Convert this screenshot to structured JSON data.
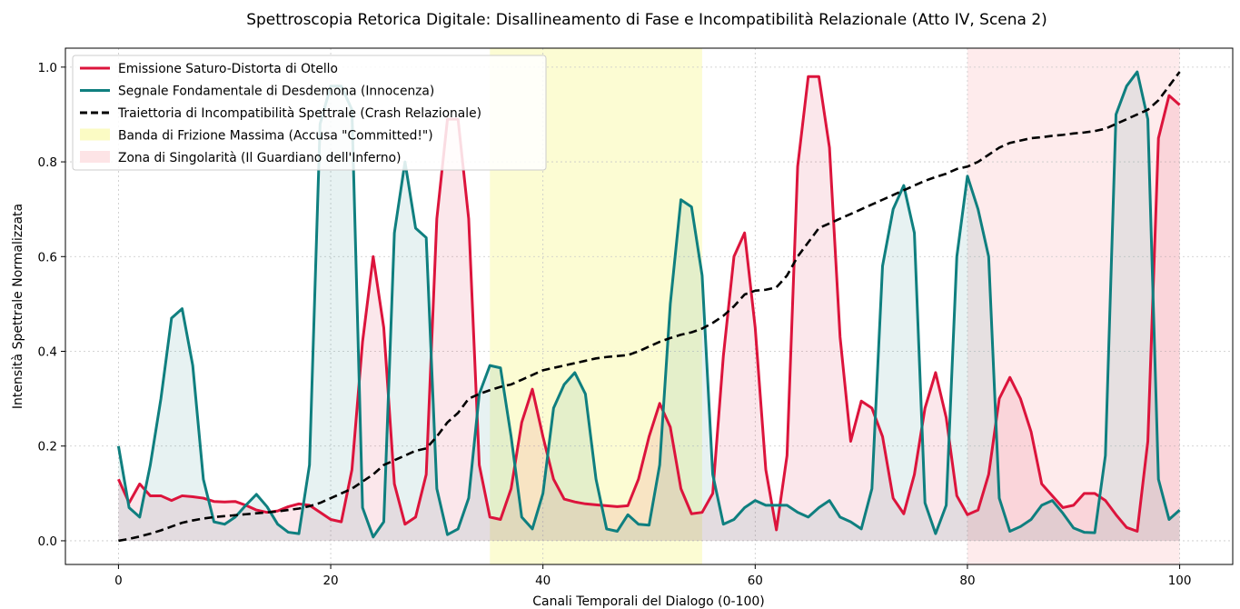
{
  "chart_data": {
    "type": "line",
    "title": "Spettroscopia Retorica Digitale: Disallineamento di Fase e Incompatibilità Relazionale (Atto IV, Scena 2)",
    "xlabel": "Canali Temporali del Dialogo (0-100)",
    "ylabel": "Intensità Spettrale Normalizzata",
    "xlim": [
      -5,
      105
    ],
    "ylim": [
      -0.05,
      1.04
    ],
    "xticks": [
      0,
      20,
      40,
      60,
      80,
      100
    ],
    "yticks": [
      0.0,
      0.2,
      0.4,
      0.6,
      0.8,
      1.0
    ],
    "xtick_labels": [
      "0",
      "20",
      "40",
      "60",
      "80",
      "100"
    ],
    "ytick_labels": [
      "0.0",
      "0.2",
      "0.4",
      "0.6",
      "0.8",
      "1.0"
    ],
    "grid": true,
    "legend_position": "upper-left",
    "x": [
      0,
      1,
      2,
      3,
      4,
      5,
      6,
      7,
      8,
      9,
      10,
      11,
      12,
      13,
      14,
      15,
      16,
      17,
      18,
      19,
      20,
      21,
      22,
      23,
      24,
      25,
      26,
      27,
      28,
      29,
      30,
      31,
      32,
      33,
      34,
      35,
      36,
      37,
      38,
      39,
      40,
      41,
      42,
      43,
      44,
      45,
      46,
      47,
      48,
      49,
      50,
      51,
      52,
      53,
      54,
      55,
      56,
      57,
      58,
      59,
      60,
      61,
      62,
      63,
      64,
      65,
      66,
      67,
      68,
      69,
      70,
      71,
      72,
      73,
      74,
      75,
      76,
      77,
      78,
      79,
      80,
      81,
      82,
      83,
      84,
      85,
      86,
      87,
      88,
      89,
      90,
      91,
      92,
      93,
      94,
      95,
      96,
      97,
      98,
      99,
      100
    ],
    "series": [
      {
        "name": "Emissione Saturo-Distorta di Otello",
        "color": "#dc143c",
        "style": "solid",
        "fill": true,
        "values": [
          0.13,
          0.08,
          0.12,
          0.095,
          0.095,
          0.085,
          0.095,
          0.093,
          0.09,
          0.083,
          0.082,
          0.083,
          0.075,
          0.065,
          0.06,
          0.063,
          0.072,
          0.078,
          0.075,
          0.06,
          0.045,
          0.04,
          0.15,
          0.42,
          0.6,
          0.45,
          0.12,
          0.035,
          0.05,
          0.14,
          0.68,
          0.89,
          0.89,
          0.68,
          0.16,
          0.05,
          0.045,
          0.11,
          0.25,
          0.32,
          0.22,
          0.13,
          0.088,
          0.082,
          0.078,
          0.076,
          0.074,
          0.072,
          0.074,
          0.13,
          0.22,
          0.29,
          0.24,
          0.11,
          0.057,
          0.06,
          0.1,
          0.39,
          0.6,
          0.65,
          0.45,
          0.15,
          0.023,
          0.18,
          0.79,
          0.98,
          0.98,
          0.83,
          0.43,
          0.21,
          0.295,
          0.28,
          0.22,
          0.09,
          0.057,
          0.14,
          0.28,
          0.355,
          0.26,
          0.095,
          0.055,
          0.065,
          0.14,
          0.3,
          0.345,
          0.3,
          0.23,
          0.12,
          0.095,
          0.07,
          0.075,
          0.1,
          0.1,
          0.085,
          0.055,
          0.028,
          0.02,
          0.21,
          0.85,
          0.94,
          0.92
        ]
      },
      {
        "name": "Segnale Fondamentale di Desdemona (Innocenza)",
        "color": "#0f7f7f",
        "style": "solid",
        "fill": true,
        "values": [
          0.2,
          0.07,
          0.05,
          0.16,
          0.3,
          0.47,
          0.49,
          0.37,
          0.13,
          0.04,
          0.035,
          0.05,
          0.075,
          0.098,
          0.072,
          0.035,
          0.018,
          0.015,
          0.16,
          0.88,
          0.96,
          0.96,
          0.91,
          0.07,
          0.008,
          0.04,
          0.65,
          0.8,
          0.66,
          0.64,
          0.11,
          0.013,
          0.025,
          0.09,
          0.31,
          0.37,
          0.365,
          0.22,
          0.05,
          0.025,
          0.1,
          0.28,
          0.33,
          0.355,
          0.31,
          0.13,
          0.025,
          0.02,
          0.055,
          0.035,
          0.033,
          0.16,
          0.5,
          0.72,
          0.705,
          0.56,
          0.14,
          0.035,
          0.045,
          0.07,
          0.085,
          0.075,
          0.075,
          0.075,
          0.06,
          0.05,
          0.07,
          0.085,
          0.05,
          0.04,
          0.025,
          0.11,
          0.58,
          0.7,
          0.75,
          0.65,
          0.08,
          0.015,
          0.075,
          0.6,
          0.77,
          0.7,
          0.6,
          0.09,
          0.02,
          0.03,
          0.045,
          0.075,
          0.085,
          0.058,
          0.027,
          0.018,
          0.017,
          0.18,
          0.9,
          0.96,
          0.99,
          0.89,
          0.13,
          0.045,
          0.065
        ]
      },
      {
        "name": "Traiettoria di Incompatibilità Spettrale (Crash Relazionale)",
        "color": "#000000",
        "style": "dashed",
        "fill": false,
        "values": [
          0.0,
          0.004,
          0.009,
          0.015,
          0.022,
          0.03,
          0.038,
          0.043,
          0.047,
          0.05,
          0.052,
          0.054,
          0.056,
          0.058,
          0.06,
          0.062,
          0.065,
          0.068,
          0.073,
          0.08,
          0.09,
          0.1,
          0.11,
          0.125,
          0.14,
          0.16,
          0.17,
          0.18,
          0.19,
          0.195,
          0.22,
          0.25,
          0.27,
          0.3,
          0.31,
          0.318,
          0.325,
          0.33,
          0.34,
          0.35,
          0.36,
          0.365,
          0.37,
          0.375,
          0.38,
          0.385,
          0.388,
          0.39,
          0.392,
          0.4,
          0.41,
          0.42,
          0.428,
          0.435,
          0.44,
          0.448,
          0.46,
          0.475,
          0.495,
          0.52,
          0.528,
          0.53,
          0.535,
          0.56,
          0.6,
          0.63,
          0.66,
          0.67,
          0.68,
          0.69,
          0.7,
          0.71,
          0.72,
          0.73,
          0.74,
          0.75,
          0.76,
          0.768,
          0.775,
          0.785,
          0.79,
          0.8,
          0.815,
          0.83,
          0.84,
          0.845,
          0.85,
          0.852,
          0.855,
          0.857,
          0.86,
          0.862,
          0.865,
          0.87,
          0.88,
          0.89,
          0.9,
          0.91,
          0.93,
          0.96,
          0.99
        ]
      }
    ],
    "bands": [
      {
        "name": "Banda di Frizione Massima (Accusa \"Committed!\")",
        "x_start": 35,
        "x_end": 55,
        "color": "#fbfbc4"
      },
      {
        "name": "Zona di Singolarità (Il Guardiano dell'Inferno)",
        "x_start": 80,
        "x_end": 100,
        "color": "#fde4e6"
      }
    ]
  }
}
